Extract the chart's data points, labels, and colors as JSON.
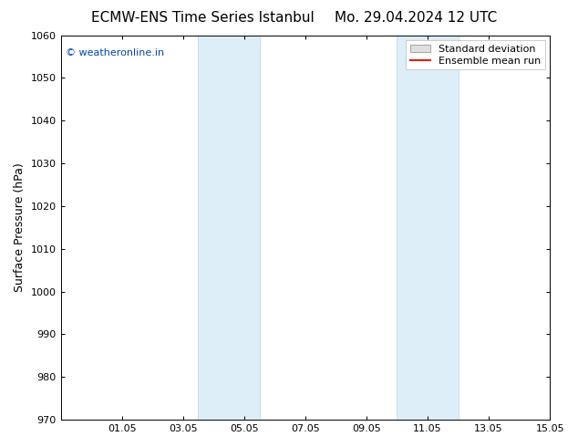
{
  "title_left": "ECMW-ENS Time Series Istanbul",
  "title_right": "Mo. 29.04.2024 12 UTC",
  "ylabel": "Surface Pressure (hPa)",
  "ylim": [
    970,
    1060
  ],
  "yticks": [
    970,
    980,
    990,
    1000,
    1010,
    1020,
    1030,
    1040,
    1050,
    1060
  ],
  "xtick_labels": [
    "01.05",
    "03.05",
    "05.05",
    "07.05",
    "09.05",
    "11.05",
    "13.05",
    "15.05"
  ],
  "xtick_positions": [
    2,
    4,
    6,
    8,
    10,
    12,
    14,
    16
  ],
  "xlim": [
    0,
    16
  ],
  "shaded_regions": [
    {
      "start": 4.5,
      "end": 6.5
    },
    {
      "start": 11.0,
      "end": 13.0
    }
  ],
  "shade_color": "#ddeef8",
  "shade_edge_color": "#b8d4e8",
  "watermark_text": "© weatheronline.in",
  "watermark_color": "#0044bb",
  "background_color": "#ffffff",
  "legend_std_label": "Standard deviation",
  "legend_mean_label": "Ensemble mean run",
  "legend_std_facecolor": "#e0e0e0",
  "legend_std_edgecolor": "#aaaaaa",
  "legend_mean_color": "#dd2200",
  "title_fontsize": 11,
  "axis_label_fontsize": 9,
  "tick_fontsize": 8,
  "watermark_fontsize": 8,
  "legend_fontsize": 8
}
